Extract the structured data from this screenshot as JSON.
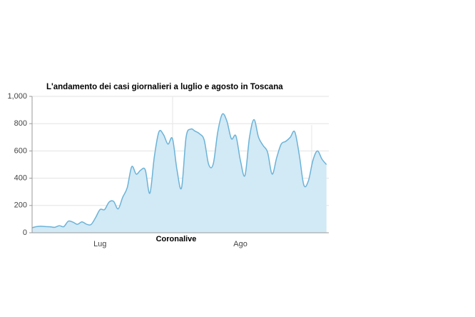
{
  "chart_data": {
    "type": "area",
    "title": "L'andamento dei casi giornalieri a luglio e agosto in Toscana",
    "annotation": "Coronalive",
    "categories": [
      null,
      null,
      null,
      null,
      null,
      null,
      null,
      null,
      null,
      null,
      null,
      null,
      null,
      null,
      null,
      "Lug",
      null,
      null,
      null,
      null,
      null,
      null,
      null,
      null,
      null,
      null,
      null,
      null,
      null,
      null,
      null,
      null,
      null,
      null,
      null,
      null,
      null,
      null,
      null,
      null,
      null,
      null,
      null,
      null,
      null,
      null,
      "Ago",
      null,
      null,
      null,
      null,
      null,
      null,
      null,
      null,
      null,
      null,
      null,
      null,
      null,
      null,
      null,
      null,
      null,
      null,
      null
    ],
    "series": [
      {
        "name": "Casi giornalieri",
        "color": "#6bb3d6",
        "fill": "#d2e9f6",
        "values": [
          37,
          45,
          48,
          45,
          44,
          40,
          52,
          45,
          85,
          78,
          62,
          80,
          63,
          60,
          110,
          170,
          170,
          225,
          230,
          175,
          260,
          330,
          485,
          430,
          460,
          460,
          290,
          560,
          740,
          720,
          650,
          690,
          460,
          330,
          700,
          760,
          745,
          725,
          680,
          500,
          505,
          740,
          870,
          820,
          690,
          710,
          530,
          420,
          700,
          830,
          700,
          640,
          590,
          430,
          550,
          650,
          670,
          700,
          740,
          570,
          350,
          380,
          530,
          600,
          540,
          500
        ]
      }
    ],
    "ylim": [
      0,
      1000
    ],
    "yticks": [
      0,
      200,
      400,
      600,
      800,
      {
        "value": 1000,
        "label": "1,000"
      }
    ],
    "grid": true
  }
}
